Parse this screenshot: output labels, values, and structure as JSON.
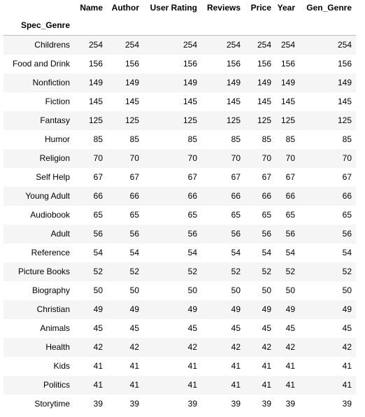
{
  "table": {
    "columns": [
      "Name",
      "Author",
      "User Rating",
      "Reviews",
      "Price",
      "Year",
      "Gen_Genre"
    ],
    "index_name": "Spec_Genre",
    "rows": [
      {
        "label": "Childrens",
        "values": [
          "254",
          "254",
          "254",
          "254",
          "254",
          "254",
          "254"
        ]
      },
      {
        "label": "Food and Drink",
        "values": [
          "156",
          "156",
          "156",
          "156",
          "156",
          "156",
          "156"
        ]
      },
      {
        "label": "Nonfiction",
        "values": [
          "149",
          "149",
          "149",
          "149",
          "149",
          "149",
          "149"
        ]
      },
      {
        "label": "Fiction",
        "values": [
          "145",
          "145",
          "145",
          "145",
          "145",
          "145",
          "145"
        ]
      },
      {
        "label": "Fantasy",
        "values": [
          "125",
          "125",
          "125",
          "125",
          "125",
          "125",
          "125"
        ]
      },
      {
        "label": "Humor",
        "values": [
          "85",
          "85",
          "85",
          "85",
          "85",
          "85",
          "85"
        ]
      },
      {
        "label": "Religion",
        "values": [
          "70",
          "70",
          "70",
          "70",
          "70",
          "70",
          "70"
        ]
      },
      {
        "label": "Self Help",
        "values": [
          "67",
          "67",
          "67",
          "67",
          "67",
          "67",
          "67"
        ]
      },
      {
        "label": "Young Adult",
        "values": [
          "66",
          "66",
          "66",
          "66",
          "66",
          "66",
          "66"
        ]
      },
      {
        "label": "Audiobook",
        "values": [
          "65",
          "65",
          "65",
          "65",
          "65",
          "65",
          "65"
        ]
      },
      {
        "label": "Adult",
        "values": [
          "56",
          "56",
          "56",
          "56",
          "56",
          "56",
          "56"
        ]
      },
      {
        "label": "Reference",
        "values": [
          "54",
          "54",
          "54",
          "54",
          "54",
          "54",
          "54"
        ]
      },
      {
        "label": "Picture Books",
        "values": [
          "52",
          "52",
          "52",
          "52",
          "52",
          "52",
          "52"
        ]
      },
      {
        "label": "Biography",
        "values": [
          "50",
          "50",
          "50",
          "50",
          "50",
          "50",
          "50"
        ]
      },
      {
        "label": "Christian",
        "values": [
          "49",
          "49",
          "49",
          "49",
          "49",
          "49",
          "49"
        ]
      },
      {
        "label": "Animals",
        "values": [
          "45",
          "45",
          "45",
          "45",
          "45",
          "45",
          "45"
        ]
      },
      {
        "label": "Health",
        "values": [
          "42",
          "42",
          "42",
          "42",
          "42",
          "42",
          "42"
        ]
      },
      {
        "label": "Kids",
        "values": [
          "41",
          "41",
          "41",
          "41",
          "41",
          "41",
          "41"
        ]
      },
      {
        "label": "Politics",
        "values": [
          "41",
          "41",
          "41",
          "41",
          "41",
          "41",
          "41"
        ]
      },
      {
        "label": "Storytime",
        "values": [
          "39",
          "39",
          "39",
          "39",
          "39",
          "39",
          "39"
        ]
      }
    ]
  },
  "colors": {
    "row_stripe": "#f5f5f5",
    "header_rule": "#bdbdbd",
    "text": "#000000"
  }
}
